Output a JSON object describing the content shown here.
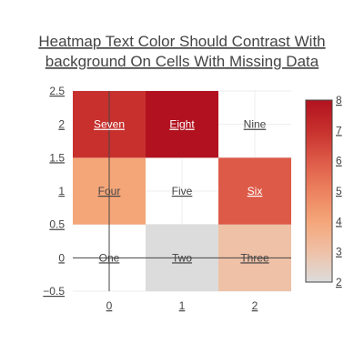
{
  "chart_data": {
    "type": "heatmap",
    "title": [
      "Heatmap Text Color Should Contrast With",
      "background On Cells With Missing Data"
    ],
    "x": [
      0,
      1,
      2
    ],
    "y": [
      0,
      1,
      2
    ],
    "x_ticks": [
      "0",
      "1",
      "2"
    ],
    "y_ticks": [
      "2.5",
      "2",
      "1.5",
      "1",
      "0.5",
      "0",
      "−0.5"
    ],
    "xlim": [
      -0.5,
      2.5
    ],
    "ylim": [
      -0.5,
      2.5
    ],
    "z": [
      [
        null,
        2,
        3
      ],
      [
        4,
        null,
        6
      ],
      [
        7,
        8,
        null
      ]
    ],
    "text": [
      [
        "One",
        "Two",
        "Three"
      ],
      [
        "Four",
        "Five",
        "Six"
      ],
      [
        "Seven",
        "Eight",
        "Nine"
      ]
    ],
    "colorscale": "RdBu reversed (grey to red)",
    "zlim": [
      2,
      8
    ],
    "colorbar_ticks": [
      "8",
      "7",
      "6",
      "5",
      "4",
      "3",
      "2"
    ],
    "colorbar_position": "right",
    "grid": true,
    "colors": {
      "missing": "#ffffff",
      "z2": "#dcdcdc",
      "z3": "#efc1a7",
      "z4": "#f4a679",
      "z6": "#dd5a48",
      "z7": "#c7302d",
      "z8": "#b2121f"
    }
  }
}
